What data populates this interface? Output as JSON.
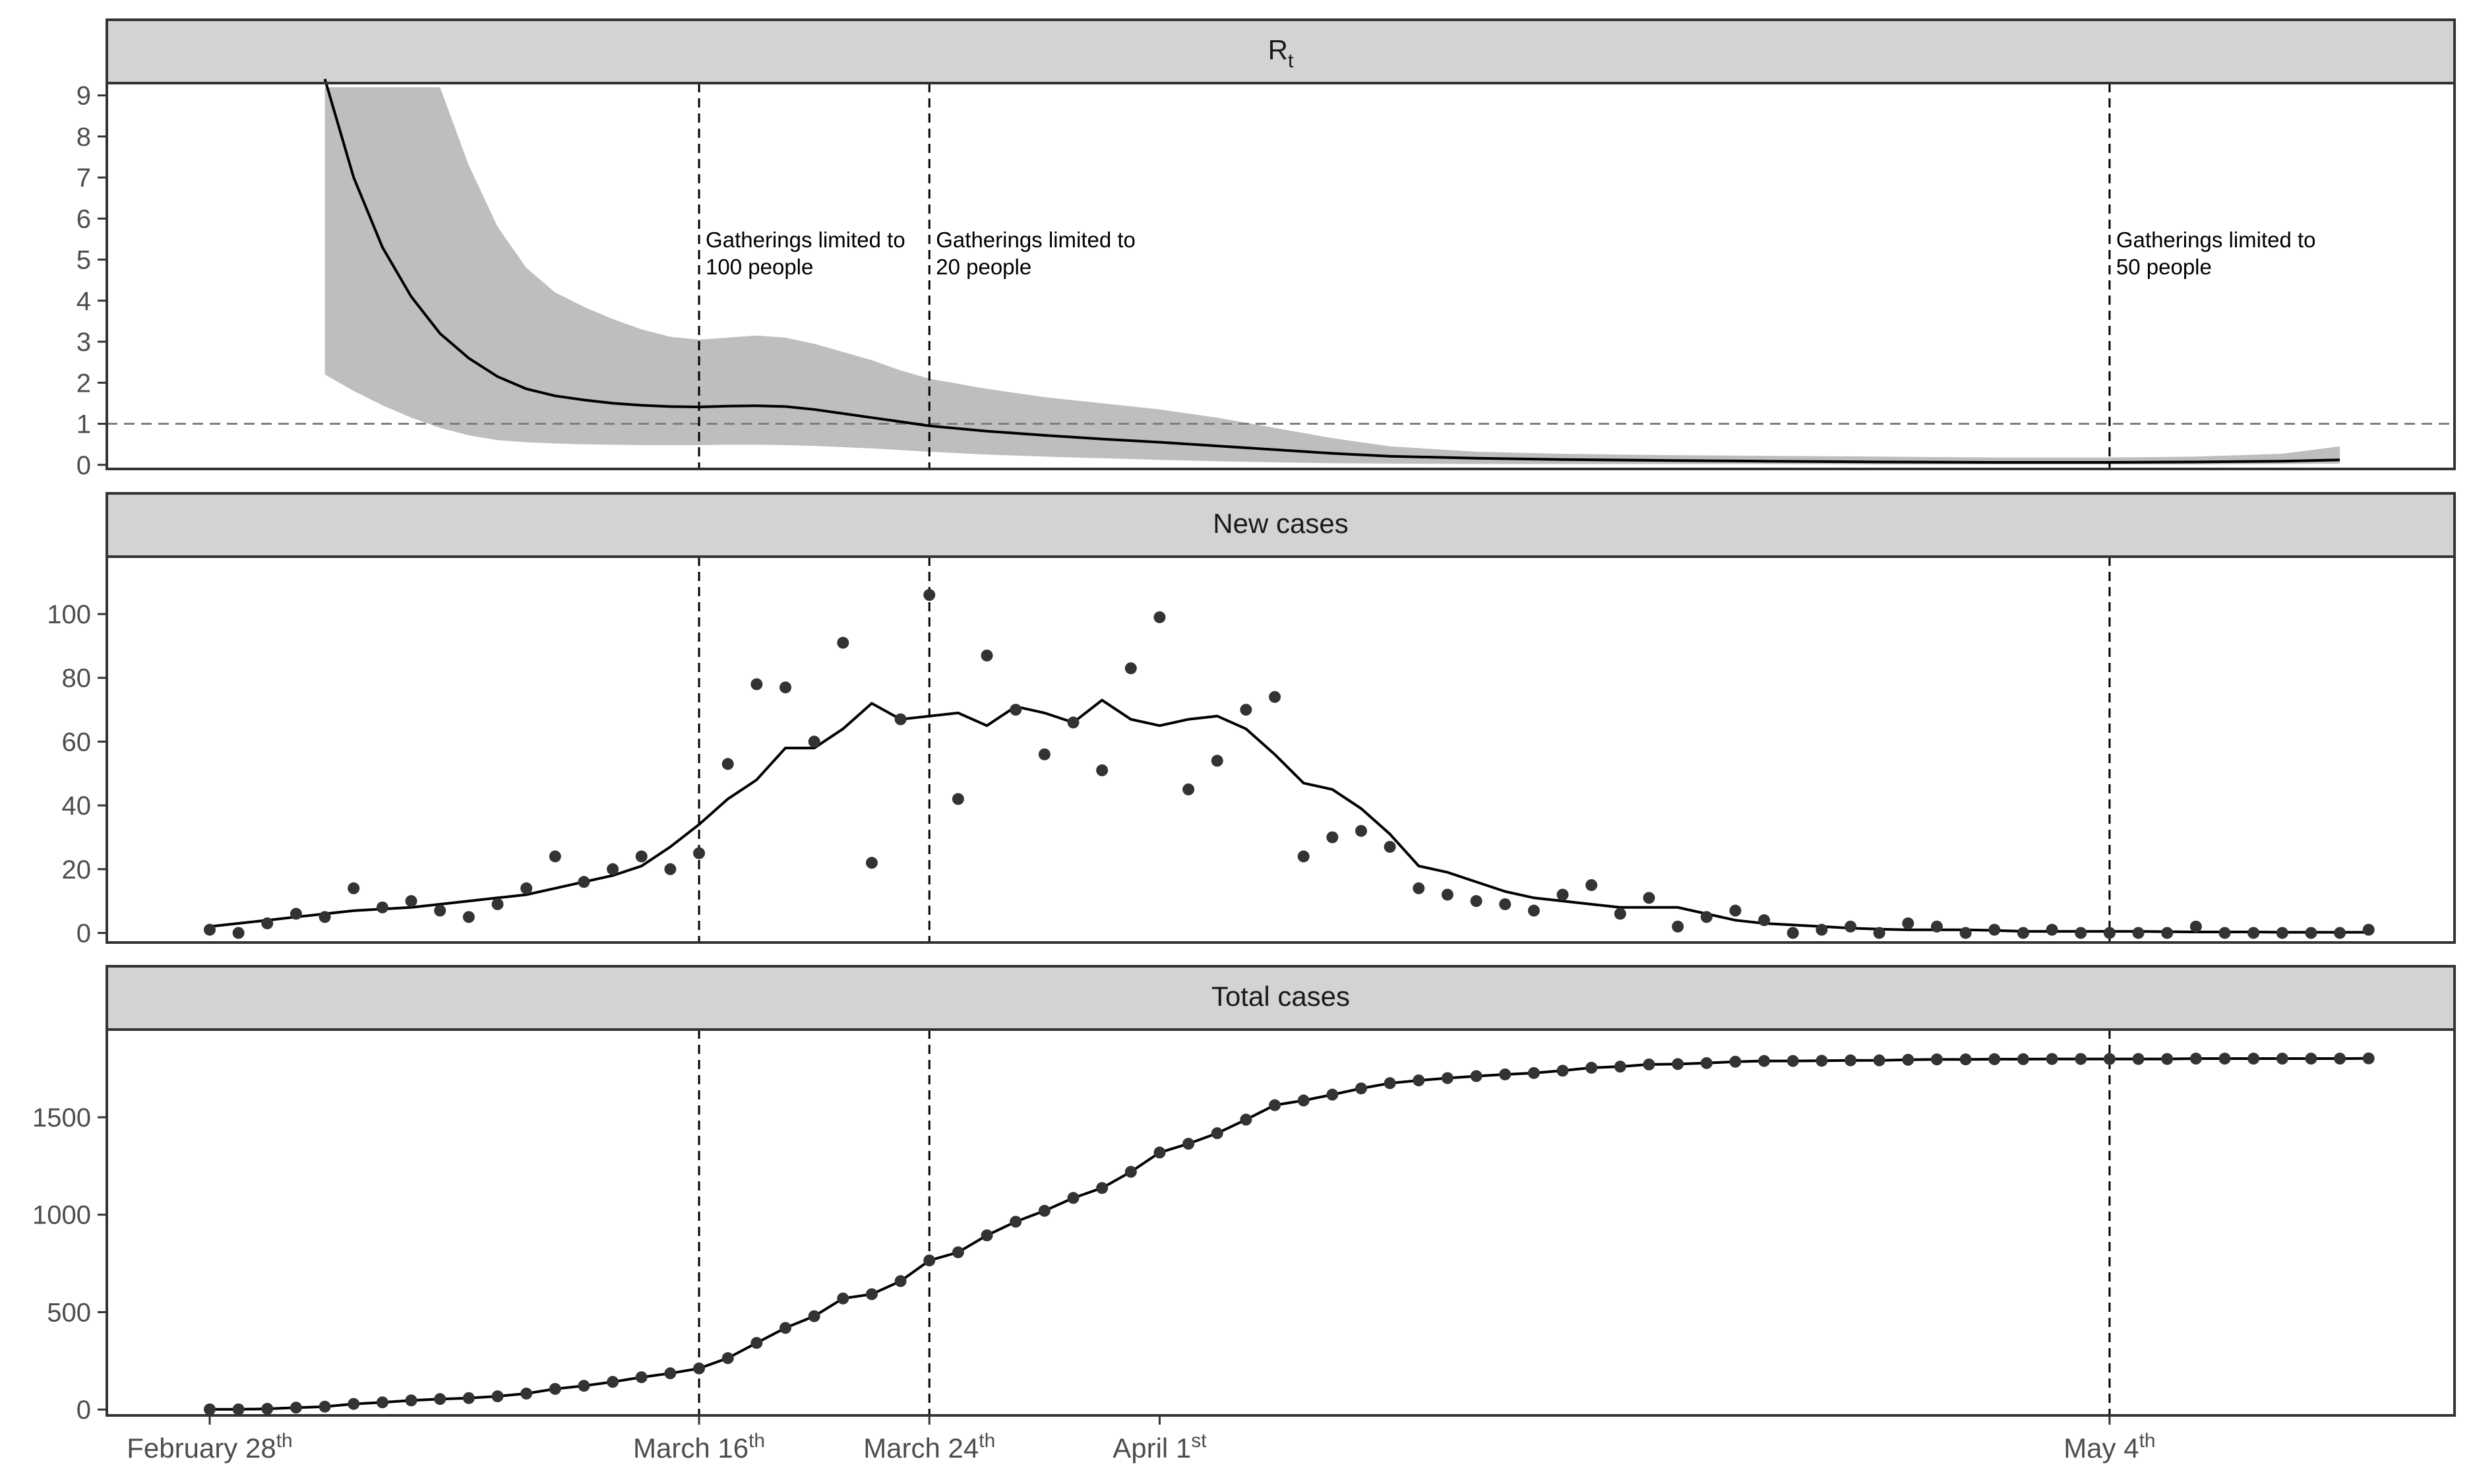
{
  "chart_data": [
    {
      "type": "line",
      "title": "R",
      "title_subscript": "t",
      "ylim": [
        -0.1,
        9.3
      ],
      "yticks": [
        "0",
        "1",
        "2",
        "3",
        "4",
        "5",
        "6",
        "7",
        "8",
        "9"
      ],
      "reference_line": 1,
      "x": [
        "2020-03-03",
        "2020-03-04",
        "2020-03-05",
        "2020-03-06",
        "2020-03-07",
        "2020-03-08",
        "2020-03-09",
        "2020-03-10",
        "2020-03-11",
        "2020-03-12",
        "2020-03-13",
        "2020-03-14",
        "2020-03-15",
        "2020-03-16",
        "2020-03-17",
        "2020-03-18",
        "2020-03-19",
        "2020-03-20",
        "2020-03-21",
        "2020-03-22",
        "2020-03-23",
        "2020-03-24",
        "2020-03-26",
        "2020-03-28",
        "2020-03-30",
        "2020-04-01",
        "2020-04-03",
        "2020-04-05",
        "2020-04-07",
        "2020-04-09",
        "2020-04-12",
        "2020-04-15",
        "2020-04-18",
        "2020-04-22",
        "2020-04-26",
        "2020-04-30",
        "2020-05-04",
        "2020-05-07",
        "2020-05-10",
        "2020-05-12"
      ],
      "series": [
        {
          "role": "estimate",
          "values": [
            9.4,
            7.0,
            5.3,
            4.1,
            3.2,
            2.6,
            2.15,
            1.85,
            1.68,
            1.58,
            1.5,
            1.45,
            1.42,
            1.41,
            1.43,
            1.44,
            1.42,
            1.35,
            1.25,
            1.15,
            1.05,
            0.95,
            0.82,
            0.72,
            0.63,
            0.55,
            0.46,
            0.37,
            0.28,
            0.21,
            0.16,
            0.13,
            0.11,
            0.09,
            0.07,
            0.06,
            0.06,
            0.07,
            0.09,
            0.12
          ]
        },
        {
          "role": "upper",
          "values": [
            9.2,
            9.2,
            9.2,
            9.2,
            9.2,
            7.3,
            5.8,
            4.8,
            4.2,
            3.85,
            3.55,
            3.3,
            3.12,
            3.05,
            3.1,
            3.15,
            3.1,
            2.95,
            2.75,
            2.55,
            2.3,
            2.1,
            1.85,
            1.65,
            1.5,
            1.35,
            1.15,
            0.9,
            0.65,
            0.45,
            0.32,
            0.27,
            0.24,
            0.22,
            0.2,
            0.18,
            0.18,
            0.2,
            0.27,
            0.45
          ]
        },
        {
          "role": "lower",
          "values": [
            2.2,
            1.8,
            1.45,
            1.15,
            0.9,
            0.72,
            0.6,
            0.55,
            0.52,
            0.5,
            0.49,
            0.48,
            0.48,
            0.48,
            0.49,
            0.49,
            0.48,
            0.46,
            0.43,
            0.4,
            0.36,
            0.32,
            0.25,
            0.2,
            0.16,
            0.12,
            0.09,
            0.06,
            0.04,
            0.03,
            0.02,
            0.02,
            0.02,
            0.02,
            0.01,
            0.01,
            0.01,
            0.01,
            0.02,
            0.03
          ]
        }
      ]
    },
    {
      "type": "scatter",
      "title": "New cases",
      "ylim": [
        -3,
        118
      ],
      "yticks": [
        "0",
        "20",
        "40",
        "60",
        "80",
        "100"
      ],
      "x_start": "2020-02-28",
      "points": [
        1,
        0,
        3,
        6,
        5,
        14,
        8,
        10,
        7,
        5,
        9,
        14,
        24,
        16,
        20,
        24,
        20,
        25,
        53,
        78,
        77,
        60,
        91,
        22,
        67,
        106,
        42,
        87,
        70,
        56,
        66,
        51,
        83,
        99,
        45,
        54,
        70,
        74,
        24,
        30,
        32,
        27,
        14,
        12,
        10,
        9,
        7,
        12,
        15,
        6,
        11,
        2,
        5,
        7,
        4,
        0,
        1,
        2,
        0,
        3,
        2,
        0,
        1,
        0,
        1,
        0,
        0,
        0,
        0,
        2,
        0,
        0,
        0,
        0,
        0,
        1
      ],
      "trend": [
        2,
        3,
        4,
        5,
        6,
        7,
        7.5,
        8,
        9,
        10,
        11,
        12,
        14,
        16,
        18,
        21,
        27,
        34,
        42,
        48,
        58,
        58,
        64,
        72,
        67,
        68,
        69,
        65,
        71,
        69,
        66,
        73,
        67,
        65,
        67,
        68,
        64,
        56,
        47,
        45,
        39,
        31,
        21,
        19,
        16,
        13,
        11,
        10,
        9,
        8,
        8,
        8,
        6,
        4,
        3,
        2.5,
        2,
        1.5,
        1.2,
        1,
        1,
        1,
        0.8,
        0.5,
        0.5,
        0.5,
        0.5,
        0.5,
        0.4,
        0.3,
        0.3,
        0.3,
        0.2,
        0.2,
        0.2,
        0.2
      ]
    },
    {
      "type": "scatter",
      "title": "Total cases",
      "ylim": [
        -30,
        1950
      ],
      "yticks": [
        "0",
        "500",
        "1000",
        "1500"
      ],
      "x_start": "2020-02-28",
      "values": [
        1,
        1,
        4,
        10,
        15,
        29,
        37,
        47,
        54,
        59,
        68,
        82,
        106,
        122,
        142,
        166,
        186,
        211,
        264,
        342,
        419,
        479,
        570,
        592,
        659,
        765,
        807,
        894,
        964,
        1020,
        1086,
        1137,
        1220,
        1319,
        1364,
        1418,
        1488,
        1562,
        1586,
        1616,
        1648,
        1675,
        1689,
        1701,
        1711,
        1720,
        1727,
        1739,
        1754,
        1760,
        1771,
        1773,
        1778,
        1785,
        1789,
        1789,
        1790,
        1792,
        1792,
        1795,
        1797,
        1797,
        1798,
        1798,
        1799,
        1799,
        1799,
        1799,
        1799,
        1801,
        1801,
        1801,
        1801,
        1801,
        1801,
        1802
      ]
    }
  ],
  "x_axis": {
    "ticks": [
      {
        "date": "2020-02-28",
        "label": "February 28",
        "sup": "th"
      },
      {
        "date": "2020-03-16",
        "label": "March 16",
        "sup": "th"
      },
      {
        "date": "2020-03-24",
        "label": "March 24",
        "sup": "th"
      },
      {
        "date": "2020-04-01",
        "label": "April 1",
        "sup": "st"
      }
    ],
    "tick_may": {
      "date": "2020-05-04",
      "label": "May 4",
      "sup": "th"
    }
  },
  "events": [
    {
      "date": "2020-03-16",
      "line1": "Gatherings limited to",
      "line2": "100 people"
    },
    {
      "date": "2020-03-24",
      "line1": "Gatherings limited to",
      "line2": "20 people"
    },
    {
      "date": "2020-05-04",
      "line1": "Gatherings limited to",
      "line2": "50 people"
    }
  ],
  "colors": {
    "strip": "#d3d3d3",
    "ribbon": "#bebebe",
    "ink": "#000000",
    "point": "#333333",
    "ref": "#7f7f7f"
  }
}
